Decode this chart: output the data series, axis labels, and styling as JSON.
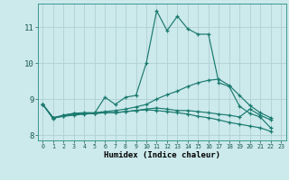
{
  "xlabel": "Humidex (Indice chaleur)",
  "background_color": "#cce9ec",
  "grid_color": "#b0d0d4",
  "line_color": "#1a7a6e",
  "xlim": [
    -0.5,
    23.5
  ],
  "ylim": [
    7.85,
    11.65
  ],
  "xticks": [
    0,
    1,
    2,
    3,
    4,
    5,
    6,
    7,
    8,
    9,
    10,
    11,
    12,
    13,
    14,
    15,
    16,
    17,
    18,
    19,
    20,
    21,
    22,
    23
  ],
  "yticks": [
    8,
    9,
    10,
    11
  ],
  "series": [
    [
      8.85,
      8.45,
      8.55,
      8.6,
      8.6,
      8.6,
      9.05,
      8.85,
      9.05,
      9.1,
      10.0,
      11.45,
      10.9,
      11.3,
      10.95,
      10.8,
      10.8,
      9.45,
      9.35,
      8.8,
      8.6,
      8.5,
      8.2
    ],
    [
      8.85,
      8.48,
      8.55,
      8.6,
      8.62,
      8.62,
      8.65,
      8.68,
      8.72,
      8.78,
      8.85,
      9.0,
      9.12,
      9.22,
      9.35,
      9.45,
      9.52,
      9.55,
      9.38,
      9.1,
      8.82,
      8.62,
      8.48
    ],
    [
      8.85,
      8.48,
      8.52,
      8.55,
      8.58,
      8.6,
      8.62,
      8.62,
      8.65,
      8.68,
      8.7,
      8.68,
      8.65,
      8.62,
      8.58,
      8.52,
      8.48,
      8.42,
      8.35,
      8.3,
      8.25,
      8.2,
      8.1
    ],
    [
      8.85,
      8.48,
      8.52,
      8.58,
      8.6,
      8.6,
      8.62,
      8.62,
      8.65,
      8.68,
      8.72,
      8.75,
      8.72,
      8.68,
      8.68,
      8.65,
      8.62,
      8.58,
      8.55,
      8.5,
      8.72,
      8.55,
      8.42
    ]
  ]
}
